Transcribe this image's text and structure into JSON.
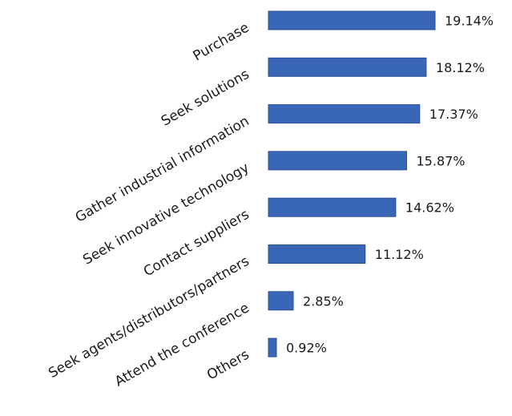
{
  "chart_data": {
    "type": "bar",
    "orientation": "horizontal",
    "categories": [
      "Purchase",
      "Seek solutions",
      "Gather industrial information",
      "Seek innovative technology",
      "Contact suppliers",
      "Seek agents/distributors/partners",
      "Attend the conference",
      "Others"
    ],
    "values": [
      19.14,
      18.12,
      17.37,
      15.87,
      14.62,
      11.12,
      2.85,
      0.92
    ],
    "value_labels": [
      "19.14%",
      "18.12%",
      "17.37%",
      "15.87%",
      "14.62%",
      "11.12%",
      "2.85%",
      "0.92%"
    ],
    "title": "",
    "xlabel": "",
    "ylabel": "",
    "xlim": [
      0,
      19.14
    ],
    "grid": false,
    "legend": "none",
    "bar_color": "#3a66b8",
    "bar_edge_color": "#2a4f95",
    "label_color": "#1a1a1a"
  }
}
